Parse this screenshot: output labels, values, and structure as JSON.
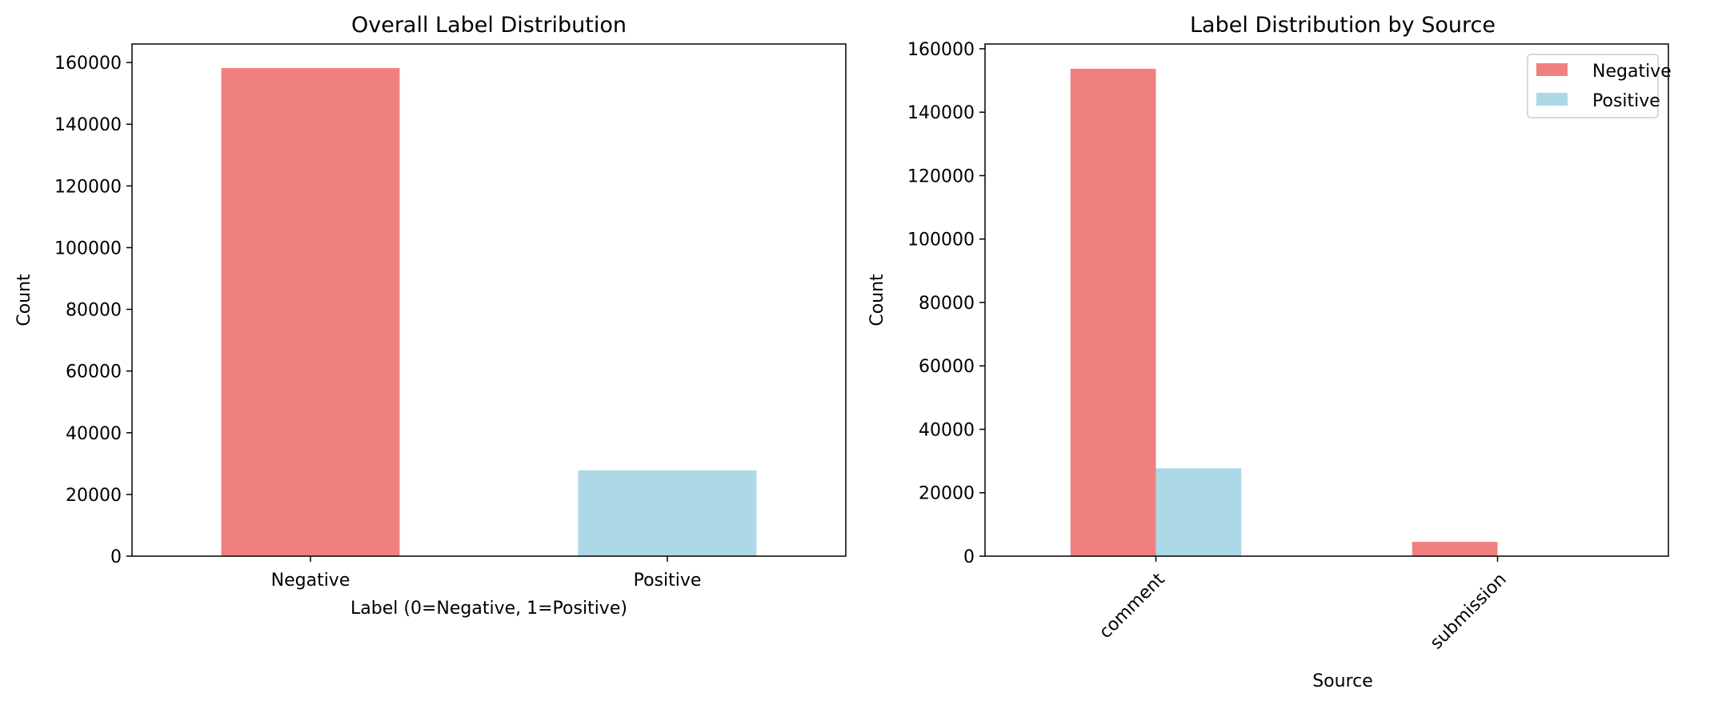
{
  "chart_data": [
    {
      "type": "bar",
      "title": "Overall Label Distribution",
      "xlabel": "Label (0=Negative, 1=Positive)",
      "ylabel": "Count",
      "categories": [
        "Negative",
        "Positive"
      ],
      "values": [
        158200,
        27800
      ],
      "bar_colors": [
        "#f08080",
        "#add8e6"
      ],
      "ylim": [
        0,
        166000
      ],
      "yticks": [
        0,
        20000,
        40000,
        60000,
        80000,
        100000,
        120000,
        140000,
        160000
      ],
      "grid": false
    },
    {
      "type": "bar",
      "title": "Label Distribution by Source",
      "xlabel": "Source",
      "ylabel": "Count",
      "categories": [
        "comment",
        "submission"
      ],
      "series": [
        {
          "name": "Negative",
          "values": [
            153700,
            4500
          ],
          "color": "#f08080"
        },
        {
          "name": "Positive",
          "values": [
            27700,
            0
          ],
          "color": "#add8e6"
        }
      ],
      "ylim": [
        0,
        161500
      ],
      "yticks": [
        0,
        20000,
        40000,
        60000,
        80000,
        100000,
        120000,
        140000,
        160000
      ],
      "xtick_rotation": 45,
      "legend": "top-right",
      "grid": false
    }
  ]
}
